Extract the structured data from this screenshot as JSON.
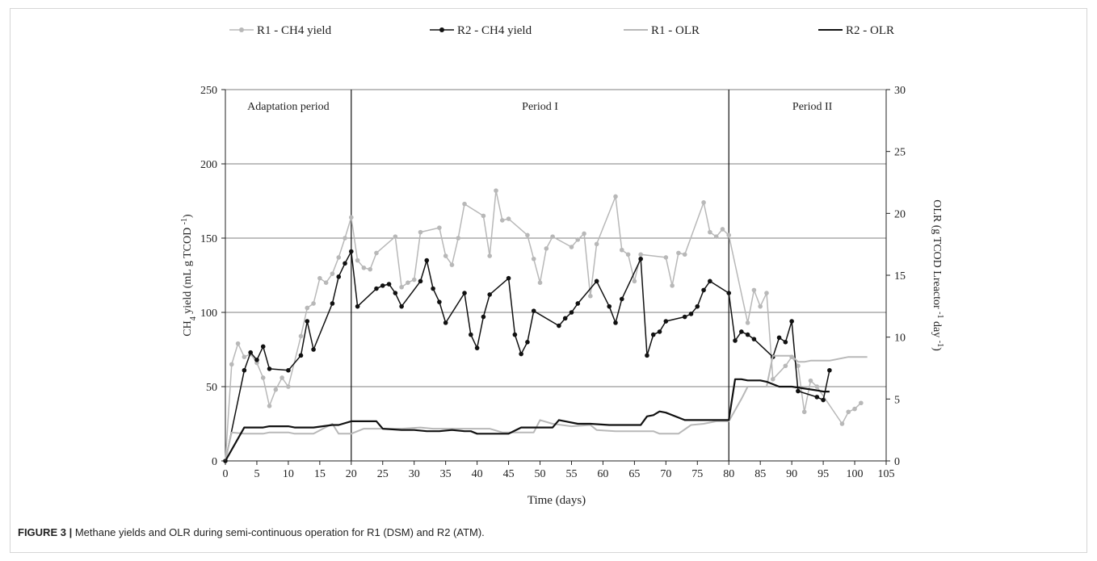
{
  "caption": {
    "label": "FIGURE 3 |",
    "text": " Methane yields and OLR during semi-continuous operation for R1 (DSM) and R2 (ATM)."
  },
  "chart_data": {
    "type": "line",
    "xlabel": "Time (days)",
    "ylabel_left": "CH4 yield (mL g TCOD -1)",
    "ylabel_right": "OLR (g TCOD Lreactor -1 day -1)",
    "xlim": [
      0,
      105
    ],
    "ylim_left": [
      0,
      250
    ],
    "ylim_right": [
      0,
      30
    ],
    "x_ticks": [
      0,
      5,
      10,
      15,
      20,
      25,
      30,
      35,
      40,
      45,
      50,
      55,
      60,
      65,
      70,
      75,
      80,
      85,
      90,
      95,
      100,
      105
    ],
    "y_ticks_left": [
      0,
      50,
      100,
      150,
      200,
      250
    ],
    "y_ticks_right": [
      0,
      5,
      10,
      15,
      20,
      25,
      30
    ],
    "grid": "horizontal",
    "legend_position": "top",
    "periods": [
      {
        "label": "Adaptation period",
        "start": 0,
        "end": 20
      },
      {
        "label": "Period I",
        "start": 20,
        "end": 80
      },
      {
        "label": "Period II",
        "start": 80,
        "end": 105
      }
    ],
    "colors": {
      "r1": "#b8b8b8",
      "r2": "#111111"
    },
    "series": [
      {
        "name": "R1 - CH4 yield",
        "axis": "left",
        "marker": true,
        "x": [
          0,
          1,
          2,
          3,
          4,
          5,
          6,
          7,
          8,
          9,
          10,
          12,
          13,
          14,
          15,
          16,
          17,
          18,
          19,
          20,
          21,
          22,
          23,
          24,
          27,
          28,
          29,
          30,
          31,
          34,
          35,
          36,
          37,
          38,
          41,
          42,
          43,
          44,
          45,
          48,
          49,
          50,
          51,
          52,
          55,
          56,
          57,
          58,
          59,
          62,
          63,
          64,
          65,
          66,
          70,
          71,
          72,
          73,
          76,
          77,
          78,
          79,
          80,
          83,
          84,
          85,
          86,
          87,
          89,
          90,
          91,
          92,
          93,
          94,
          98,
          99,
          100,
          101
        ],
        "values": [
          0,
          65,
          79,
          70,
          72,
          66,
          56,
          37,
          48,
          56,
          50,
          84,
          103,
          106,
          123,
          120,
          126,
          137,
          150,
          164,
          135,
          130,
          129,
          140,
          151,
          117,
          120,
          122,
          154,
          157,
          138,
          132,
          150,
          173,
          165,
          138,
          182,
          162,
          163,
          152,
          136,
          120,
          143,
          151,
          144,
          149,
          153,
          111,
          146,
          178,
          142,
          139,
          121,
          139,
          137,
          118,
          140,
          139,
          174,
          154,
          151,
          156,
          152,
          93,
          115,
          104,
          113,
          55,
          64,
          70,
          64,
          33,
          54,
          50,
          25,
          33,
          35,
          39
        ]
      },
      {
        "name": "R2 - CH4 yield",
        "axis": "left",
        "marker": true,
        "x": [
          0,
          3,
          4,
          5,
          6,
          7,
          10,
          12,
          13,
          14,
          17,
          18,
          19,
          20,
          21,
          24,
          25,
          26,
          27,
          28,
          31,
          32,
          33,
          34,
          35,
          38,
          39,
          40,
          41,
          42,
          45,
          46,
          47,
          48,
          49,
          53,
          54,
          55,
          56,
          59,
          61,
          62,
          63,
          66,
          67,
          68,
          69,
          70,
          73,
          74,
          75,
          76,
          77,
          80,
          81,
          82,
          83,
          84,
          87,
          88,
          89,
          90,
          91,
          94,
          95,
          96
        ],
        "values": [
          0,
          61,
          73,
          68,
          77,
          62,
          61,
          71,
          94,
          75,
          106,
          124,
          133,
          141,
          104,
          116,
          118,
          119,
          113,
          104,
          121,
          135,
          116,
          107,
          93,
          113,
          85,
          76,
          97,
          112,
          123,
          85,
          72,
          80,
          101,
          91,
          96,
          100,
          106,
          121,
          104,
          93,
          109,
          136,
          71,
          85,
          87,
          94,
          97,
          99,
          104,
          115,
          121,
          113,
          81,
          87,
          85,
          82,
          70,
          83,
          80,
          94,
          47,
          43,
          41,
          61
        ]
      },
      {
        "name": "R1 - OLR",
        "axis": "right",
        "marker": false,
        "x": [
          0,
          1,
          3,
          6,
          7,
          10,
          11,
          14,
          17,
          18,
          20,
          22,
          25,
          28,
          31,
          33,
          36,
          38,
          40,
          42,
          44,
          46,
          49,
          50,
          52,
          55,
          58,
          59,
          62,
          65,
          68,
          69,
          72,
          74,
          76,
          78,
          80,
          82,
          83,
          86,
          87,
          90,
          91,
          92,
          93,
          96,
          99,
          102
        ],
        "values": [
          0,
          2.3,
          2.2,
          2.2,
          2.3,
          2.3,
          2.2,
          2.2,
          3.0,
          2.2,
          2.2,
          2.6,
          2.6,
          2.6,
          2.7,
          2.6,
          2.6,
          2.6,
          2.6,
          2.6,
          2.3,
          2.3,
          2.3,
          3.3,
          3.0,
          2.8,
          2.9,
          2.5,
          2.4,
          2.4,
          2.4,
          2.2,
          2.2,
          2.9,
          3.0,
          3.2,
          3.2,
          5.0,
          6.0,
          6.0,
          8.5,
          8.5,
          8.0,
          8.0,
          8.1,
          8.1,
          8.4,
          8.4
        ]
      },
      {
        "name": "R2 - OLR",
        "axis": "right",
        "marker": false,
        "x": [
          0,
          3,
          6,
          7,
          10,
          11,
          14,
          17,
          18,
          20,
          21,
          24,
          25,
          28,
          30,
          32,
          34,
          36,
          38,
          39,
          40,
          42,
          44,
          45,
          47,
          50,
          52,
          53,
          56,
          58,
          61,
          64,
          66,
          67,
          68,
          69,
          70,
          73,
          76,
          79,
          80,
          81,
          82,
          83,
          84,
          85,
          86,
          88,
          90,
          94,
          95,
          96
        ],
        "values": [
          0,
          2.7,
          2.7,
          2.8,
          2.8,
          2.7,
          2.7,
          2.9,
          2.9,
          3.2,
          3.2,
          3.2,
          2.6,
          2.5,
          2.5,
          2.4,
          2.4,
          2.5,
          2.4,
          2.4,
          2.2,
          2.2,
          2.2,
          2.2,
          2.7,
          2.7,
          2.7,
          3.3,
          3.0,
          3.0,
          2.9,
          2.9,
          2.9,
          3.6,
          3.7,
          4.0,
          3.9,
          3.3,
          3.3,
          3.3,
          3.3,
          6.6,
          6.6,
          6.5,
          6.5,
          6.5,
          6.4,
          6.0,
          6.0,
          5.7,
          5.6,
          5.6
        ]
      }
    ]
  }
}
